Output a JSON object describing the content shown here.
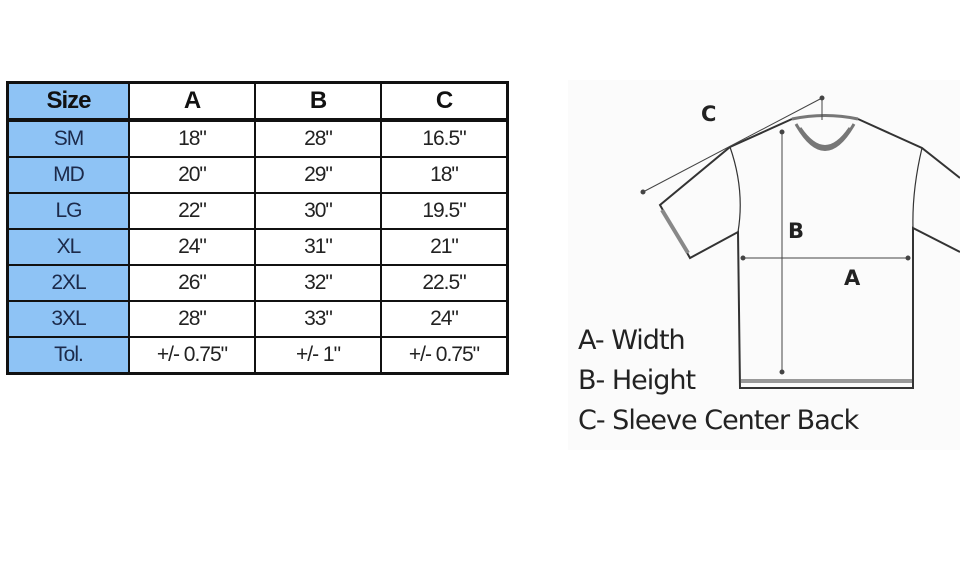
{
  "table": {
    "headers": [
      "Size",
      "A",
      "B",
      "C"
    ],
    "rows": [
      [
        "SM",
        "18\"",
        "28\"",
        "16.5\""
      ],
      [
        "MD",
        "20\"",
        "29\"",
        "18\""
      ],
      [
        "LG",
        "22\"",
        "30\"",
        "19.5\""
      ],
      [
        "XL",
        "24\"",
        "31\"",
        "21\""
      ],
      [
        "2XL",
        "26\"",
        "32\"",
        "22.5\""
      ],
      [
        "3XL",
        "28\"",
        "33\"",
        "24\""
      ],
      [
        "Tol.",
        "+/- 0.75\"",
        "+/- 1\"",
        "+/- 0.75\""
      ]
    ],
    "size_column_color": "#8ec3f5"
  },
  "diagram": {
    "labels": {
      "a": "A",
      "b": "B",
      "c": "C"
    },
    "legend": [
      "A- Width",
      "B- Height",
      "C- Sleeve Center Back"
    ]
  }
}
